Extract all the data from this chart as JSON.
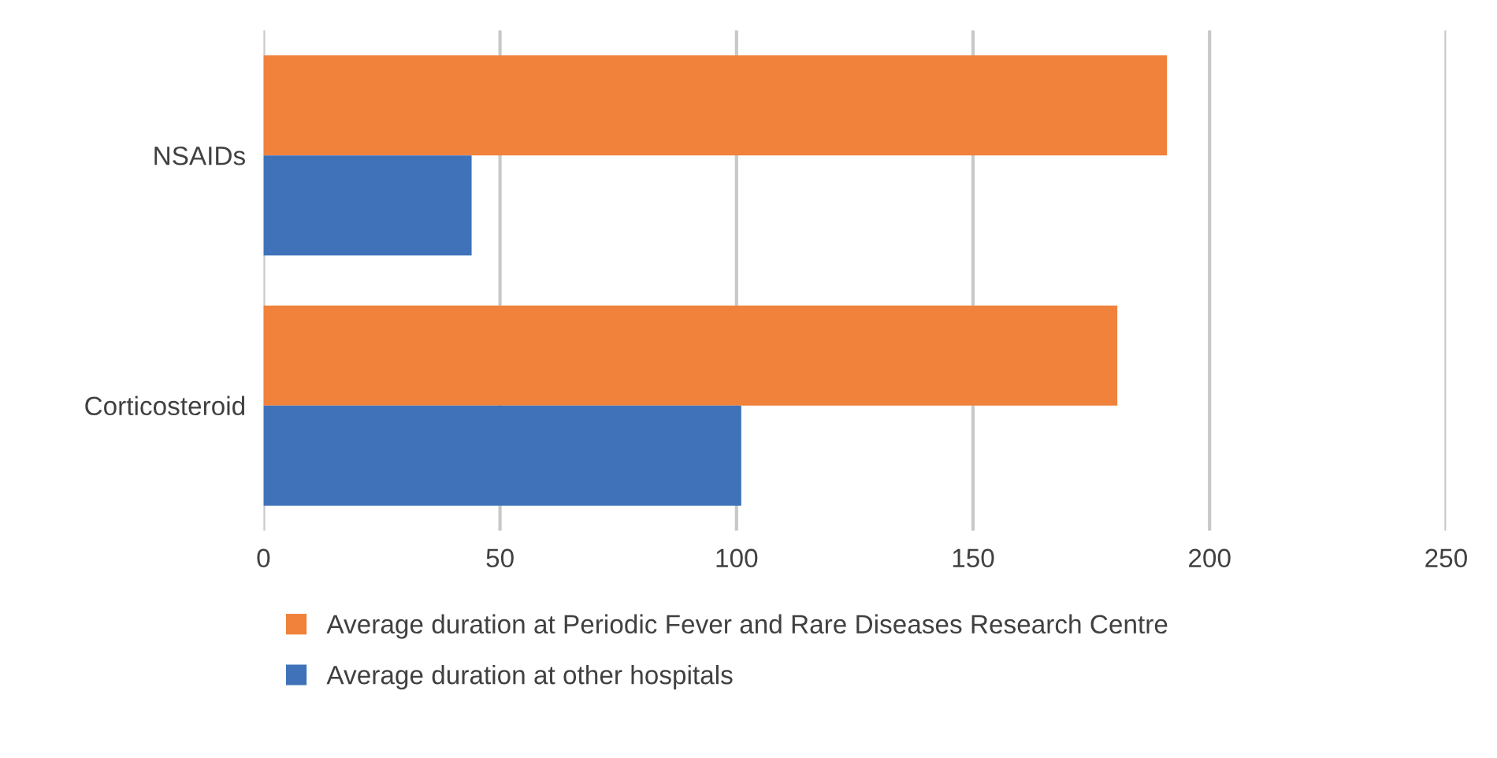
{
  "chart_data": {
    "type": "bar",
    "orientation": "horizontal",
    "categories": [
      "NSAIDs",
      "Corticosteroid"
    ],
    "series": [
      {
        "name": "Average duration at Periodic Fever and Rare Diseases Research Centre",
        "color": "#f0823c",
        "values": [
          191,
          180.5
        ]
      },
      {
        "name": "Average duration at other hospitals",
        "color": "#3f72b8",
        "values": [
          44,
          101
        ]
      }
    ],
    "xlim": [
      0,
      250
    ],
    "xticks": [
      0,
      50,
      100,
      150,
      200,
      250
    ],
    "grid": "x",
    "legend": "bottom"
  }
}
